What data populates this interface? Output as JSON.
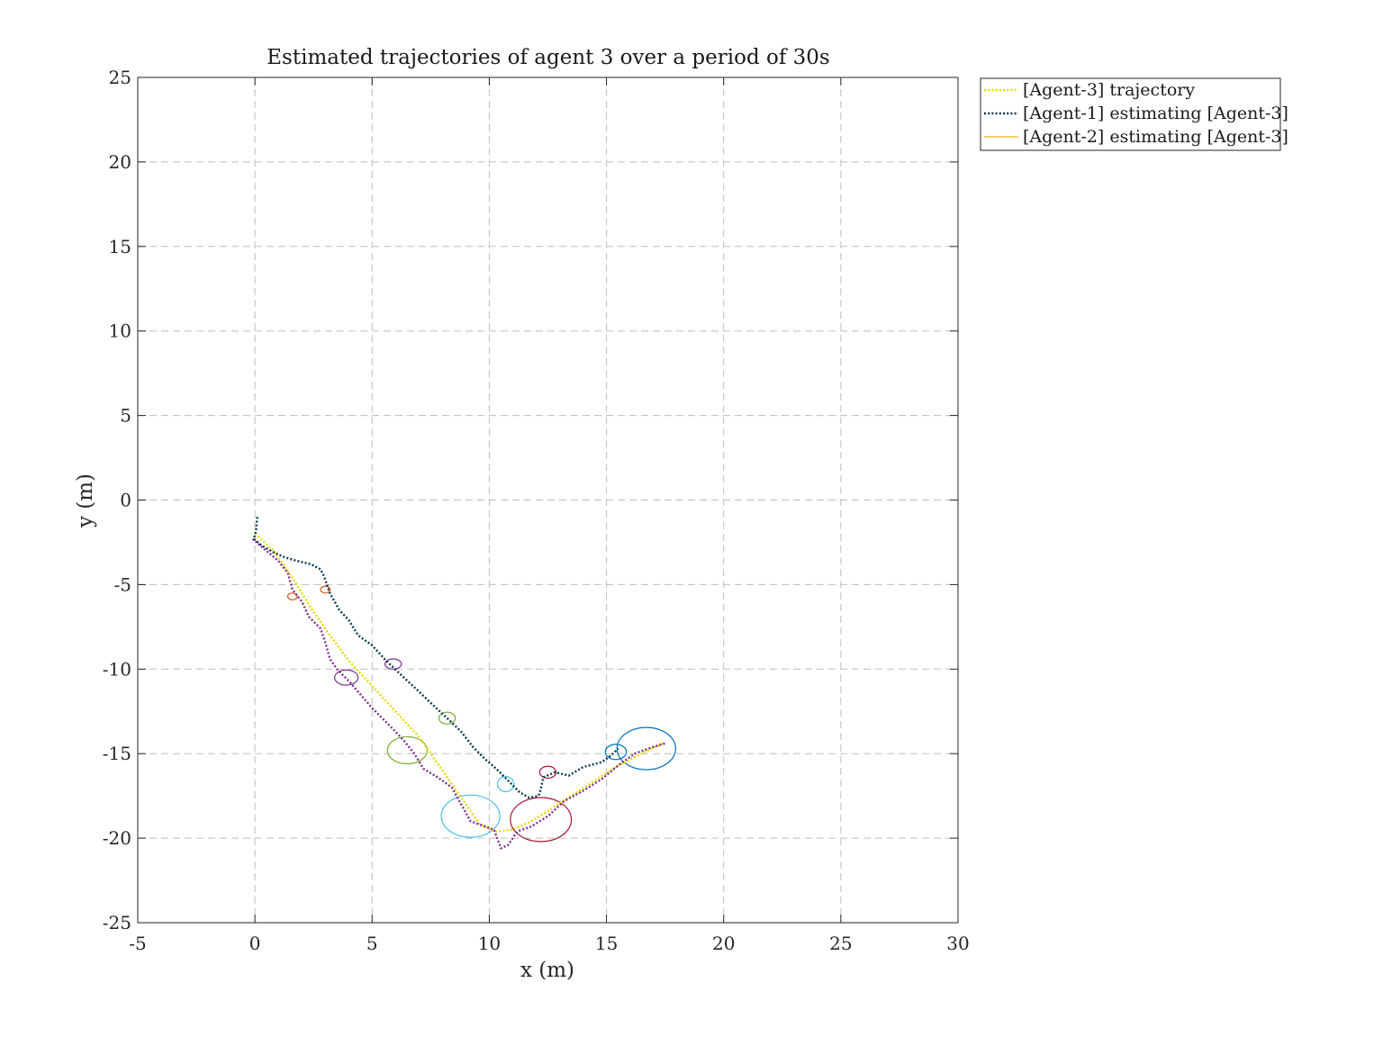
{
  "chart_data": {
    "type": "line",
    "title": "Estimated trajectories of agent 3 over a period of 30s",
    "xlabel": "x (m)",
    "ylabel": "y (m)",
    "xlim": [
      -5,
      30
    ],
    "ylim": [
      -25,
      25
    ],
    "xticks": [
      -5,
      0,
      5,
      10,
      15,
      20,
      25,
      30
    ],
    "yticks": [
      25,
      20,
      15,
      10,
      5,
      0,
      -5,
      -10,
      -15,
      -20,
      -25
    ],
    "xtick_labels": [
      "-5",
      "0",
      "5",
      "10",
      "15",
      "20",
      "25",
      "30"
    ],
    "ytick_labels": [
      "25",
      "20",
      "15",
      "10",
      "5",
      "0",
      "-5",
      "-10",
      "-15",
      "-20",
      "-25"
    ],
    "grid": true,
    "legend_position": "outside-top-right",
    "series": [
      {
        "name": "[Agent-3] trajectory",
        "color": "#e6d800",
        "style": "dotted",
        "legend": true,
        "x": [
          0,
          0.8,
          1.6,
          2.4,
          3.2,
          4.0,
          5.0,
          6.0,
          7.0,
          7.6,
          8.3,
          9.0,
          9.6,
          10.3,
          11.0,
          11.8,
          12.6,
          13.5,
          14.5,
          15.5,
          16.5,
          17.4
        ],
        "y": [
          -2.0,
          -3.0,
          -4.6,
          -6.4,
          -8.0,
          -9.5,
          -11.0,
          -12.5,
          -14.0,
          -15.2,
          -16.6,
          -18.0,
          -19.2,
          -19.6,
          -19.5,
          -19.0,
          -18.3,
          -17.5,
          -16.6,
          -15.7,
          -15.0,
          -14.4
        ]
      },
      {
        "name": "[Agent-1] estimating [Agent-3]",
        "color": "#08394a",
        "style": "dotted",
        "legend": true,
        "x": [
          0.1,
          0.05,
          -0.05,
          0.3,
          0.8,
          1.3,
          1.8,
          2.4,
          2.8,
          2.95,
          3.2,
          3.6,
          4.0,
          4.4,
          5.0,
          5.6,
          6.2,
          6.9,
          7.5,
          8.2,
          8.8,
          9.3,
          9.8,
          10.3,
          10.8,
          11.3,
          11.7,
          12.1,
          12.2,
          12.3,
          12.8,
          13.4,
          14.0,
          14.8,
          15.2,
          15.5
        ],
        "y": [
          -1.0,
          -1.8,
          -2.3,
          -2.7,
          -3.1,
          -3.4,
          -3.6,
          -3.8,
          -4.1,
          -4.5,
          -5.5,
          -6.5,
          -7.1,
          -8.0,
          -8.6,
          -9.5,
          -10.3,
          -11.2,
          -12.0,
          -12.9,
          -13.7,
          -14.6,
          -15.3,
          -15.9,
          -16.6,
          -17.3,
          -17.6,
          -17.5,
          -17.1,
          -16.4,
          -16.1,
          -16.3,
          -15.8,
          -15.5,
          -15.1,
          -14.7
        ]
      },
      {
        "name": "[Agent-2] estimating [Agent-3]",
        "color": "#edb120",
        "style": "solid",
        "legend": true,
        "x": [],
        "y": []
      },
      {
        "name": "",
        "color": "#7e2f8e",
        "style": "dotted",
        "legend": false,
        "x": [
          -0.1,
          0.4,
          1.0,
          1.4,
          1.6,
          2.0,
          2.3,
          2.8,
          3.0,
          3.2,
          3.5,
          4.0,
          4.5,
          5.0,
          5.5,
          6.0,
          6.4,
          6.8,
          7.2,
          7.8,
          8.4,
          8.8,
          9.2,
          9.8,
          10.2,
          10.5,
          10.8,
          11.2,
          11.8,
          12.5,
          13.2,
          14.0,
          14.8,
          15.5,
          16.2,
          17.0,
          17.5
        ],
        "y": [
          -2.3,
          -2.9,
          -3.6,
          -4.3,
          -5.3,
          -6.0,
          -6.9,
          -7.6,
          -8.4,
          -9.4,
          -10.0,
          -10.7,
          -11.5,
          -12.3,
          -13.0,
          -13.7,
          -14.3,
          -15.0,
          -15.9,
          -16.4,
          -17.0,
          -18.0,
          -19.0,
          -19.3,
          -19.5,
          -20.6,
          -20.4,
          -19.6,
          -19.3,
          -18.7,
          -17.8,
          -17.2,
          -16.5,
          -15.7,
          -15.0,
          -14.6,
          -14.4
        ]
      }
    ],
    "ellipses": [
      {
        "cx": 1.6,
        "cy": -5.7,
        "rx": 0.2,
        "ry": 0.2,
        "color": "#d95319"
      },
      {
        "cx": 3.0,
        "cy": -5.3,
        "rx": 0.2,
        "ry": 0.2,
        "color": "#d95319"
      },
      {
        "cx": 5.9,
        "cy": -9.7,
        "rx": 0.35,
        "ry": 0.3,
        "color": "#7e2f8e"
      },
      {
        "cx": 3.9,
        "cy": -10.5,
        "rx": 0.5,
        "ry": 0.45,
        "color": "#7e2f8e"
      },
      {
        "cx": 8.2,
        "cy": -12.9,
        "rx": 0.35,
        "ry": 0.35,
        "color": "#77ac30"
      },
      {
        "cx": 6.5,
        "cy": -14.8,
        "rx": 0.85,
        "ry": 0.8,
        "color": "#77ac30"
      },
      {
        "cx": 10.7,
        "cy": -16.8,
        "rx": 0.35,
        "ry": 0.45,
        "color": "#4dbeee"
      },
      {
        "cx": 9.2,
        "cy": -18.7,
        "rx": 1.25,
        "ry": 1.25,
        "color": "#4dbeee"
      },
      {
        "cx": 12.5,
        "cy": -16.1,
        "rx": 0.35,
        "ry": 0.35,
        "color": "#a2142f"
      },
      {
        "cx": 12.2,
        "cy": -18.9,
        "rx": 1.3,
        "ry": 1.3,
        "color": "#a2142f"
      },
      {
        "cx": 15.4,
        "cy": -14.9,
        "rx": 0.45,
        "ry": 0.45,
        "color": "#0072bd"
      },
      {
        "cx": 16.7,
        "cy": -14.7,
        "rx": 1.25,
        "ry": 1.25,
        "color": "#0072bd"
      }
    ]
  }
}
